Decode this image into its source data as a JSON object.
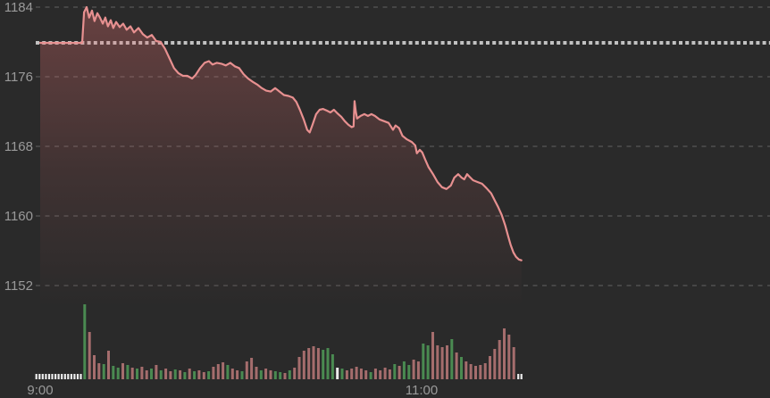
{
  "app": {
    "background_color": "#2a2a2a",
    "axis_text_color": "#9a9a9a"
  },
  "chart_data": {
    "type": "line",
    "description": "Intraday stock-index price chart with area fill and volume bars",
    "x_axis": {
      "tick_labels": [
        "9:00",
        "11:00"
      ],
      "tick_minutes": [
        0,
        120
      ],
      "session_start_label": "9:00",
      "data_end_minute": 151.4
    },
    "y_axis": {
      "side": "left",
      "tick_values": [
        1184,
        1176,
        1168,
        1160,
        1152
      ],
      "range": [
        1149.4,
        1184.8
      ]
    },
    "grid": true,
    "legend": false,
    "previous_close_reference": 1179.9,
    "open_value": 1179.9,
    "session_high": 1184.0,
    "session_low": 1154.9,
    "last_price": 1154.9,
    "colors": {
      "price_line": "#e79090",
      "area_fill": "#e06e6e",
      "grid_line": "#4a4a4a",
      "reference_line": "#d6d6d6",
      "volume_up": "#4a8a51",
      "volume_down": "#a56d6d",
      "volume_neutral": "#ececec",
      "axis_text": "#9a9a9a"
    },
    "price_series": {
      "name": "index-price",
      "unit": "points",
      "points": [
        [
          0,
          1179.9
        ],
        [
          13.2,
          1179.9
        ],
        [
          13.8,
          1183.4
        ],
        [
          14.6,
          1184
        ],
        [
          15.4,
          1182.8
        ],
        [
          16.3,
          1183.6
        ],
        [
          17.1,
          1182.4
        ],
        [
          18,
          1183.3
        ],
        [
          18.8,
          1182.8
        ],
        [
          19.7,
          1182.1
        ],
        [
          20.5,
          1182.8
        ],
        [
          21.3,
          1181.8
        ],
        [
          22.2,
          1182.5
        ],
        [
          23,
          1181.6
        ],
        [
          23.9,
          1182.3
        ],
        [
          25,
          1181.7
        ],
        [
          26.1,
          1182.1
        ],
        [
          27.2,
          1181.4
        ],
        [
          28.4,
          1181.8
        ],
        [
          29.5,
          1181.1
        ],
        [
          30.9,
          1181.6
        ],
        [
          32.3,
          1180.9
        ],
        [
          33.7,
          1180.5
        ],
        [
          35.1,
          1180.8
        ],
        [
          36.5,
          1180.1
        ],
        [
          37.9,
          1180
        ],
        [
          39.3,
          1179.2
        ],
        [
          40.7,
          1178.1
        ],
        [
          42.1,
          1177
        ],
        [
          43.5,
          1176.4
        ],
        [
          44.9,
          1176.1
        ],
        [
          46.3,
          1176.1
        ],
        [
          47.8,
          1175.8
        ],
        [
          48.9,
          1176.2
        ],
        [
          50.3,
          1177
        ],
        [
          51.7,
          1177.6
        ],
        [
          53.1,
          1177.8
        ],
        [
          54.2,
          1177.4
        ],
        [
          55.6,
          1177.6
        ],
        [
          57,
          1177.5
        ],
        [
          58.4,
          1177.3
        ],
        [
          59.8,
          1177.6
        ],
        [
          61.2,
          1177.2
        ],
        [
          62.6,
          1177
        ],
        [
          64,
          1176.3
        ],
        [
          65.4,
          1175.8
        ],
        [
          66.9,
          1175.4
        ],
        [
          68.3,
          1175.1
        ],
        [
          69.7,
          1174.7
        ],
        [
          71.1,
          1174.4
        ],
        [
          72.5,
          1174.3
        ],
        [
          73.9,
          1174.7
        ],
        [
          75.3,
          1174.3
        ],
        [
          76.7,
          1173.9
        ],
        [
          78.1,
          1173.8
        ],
        [
          79.5,
          1173.6
        ],
        [
          80.6,
          1173.1
        ],
        [
          81.7,
          1172.2
        ],
        [
          82.9,
          1171.1
        ],
        [
          84,
          1169.9
        ],
        [
          84.8,
          1169.6
        ],
        [
          85.7,
          1170.5
        ],
        [
          86.8,
          1171.7
        ],
        [
          87.9,
          1172.2
        ],
        [
          89,
          1172.3
        ],
        [
          90.2,
          1172.1
        ],
        [
          91.3,
          1171.9
        ],
        [
          92.4,
          1172.2
        ],
        [
          93.5,
          1171.8
        ],
        [
          94.7,
          1171.4
        ],
        [
          95.8,
          1170.9
        ],
        [
          96.9,
          1170.5
        ],
        [
          98,
          1170.2
        ],
        [
          98.6,
          1170.3
        ],
        [
          98.9,
          1173.2
        ],
        [
          99.3,
          1172
        ],
        [
          99.7,
          1171.2
        ],
        [
          100.8,
          1171.5
        ],
        [
          102,
          1171.7
        ],
        [
          103.1,
          1171.5
        ],
        [
          104.2,
          1171.7
        ],
        [
          105.3,
          1171.5
        ],
        [
          106.7,
          1171.1
        ],
        [
          108.1,
          1170.9
        ],
        [
          109.6,
          1170.7
        ],
        [
          111,
          1169.9
        ],
        [
          111.8,
          1170.4
        ],
        [
          112.9,
          1170.1
        ],
        [
          114,
          1169.2
        ],
        [
          115.4,
          1168.8
        ],
        [
          116.9,
          1168.5
        ],
        [
          118,
          1168.1
        ],
        [
          118.5,
          1167.2
        ],
        [
          119.4,
          1167.6
        ],
        [
          120.2,
          1167.3
        ],
        [
          121.1,
          1166.5
        ],
        [
          122.2,
          1165.6
        ],
        [
          123.6,
          1164.8
        ],
        [
          125,
          1163.9
        ],
        [
          126.4,
          1163.3
        ],
        [
          127.8,
          1163.1
        ],
        [
          129.2,
          1163.5
        ],
        [
          130.3,
          1164.4
        ],
        [
          131.5,
          1164.8
        ],
        [
          132.6,
          1164.4
        ],
        [
          133.4,
          1164.2
        ],
        [
          134.3,
          1164.8
        ],
        [
          135.1,
          1164.5
        ],
        [
          136.2,
          1164.1
        ],
        [
          137.6,
          1163.9
        ],
        [
          139,
          1163.7
        ],
        [
          140.4,
          1163.2
        ],
        [
          141.9,
          1162.6
        ],
        [
          143,
          1161.8
        ],
        [
          144.1,
          1161
        ],
        [
          145.2,
          1160.1
        ],
        [
          146.3,
          1158.9
        ],
        [
          147.2,
          1157.7
        ],
        [
          148,
          1156.7
        ],
        [
          148.9,
          1155.8
        ],
        [
          149.7,
          1155.3
        ],
        [
          150.6,
          1155
        ],
        [
          151.4,
          1154.9
        ]
      ]
    },
    "volume_series": {
      "name": "volume",
      "unit": "relative",
      "bars": [
        [
          14,
          84,
          "u"
        ],
        [
          15.5,
          53,
          "d"
        ],
        [
          17,
          27,
          "d"
        ],
        [
          18.5,
          18,
          "d"
        ],
        [
          20,
          17,
          "u"
        ],
        [
          21.5,
          32,
          "d"
        ],
        [
          23,
          15,
          "u"
        ],
        [
          24.5,
          13,
          "u"
        ],
        [
          26,
          18,
          "d"
        ],
        [
          27.5,
          16,
          "u"
        ],
        [
          29,
          13,
          "d"
        ],
        [
          30.5,
          12,
          "u"
        ],
        [
          32,
          14,
          "d"
        ],
        [
          33.5,
          10,
          "d"
        ],
        [
          35,
          12,
          "u"
        ],
        [
          36.5,
          16,
          "d"
        ],
        [
          38,
          10,
          "u"
        ],
        [
          39.5,
          12,
          "d"
        ],
        [
          41,
          9,
          "d"
        ],
        [
          42.5,
          11,
          "u"
        ],
        [
          44,
          10,
          "d"
        ],
        [
          45.5,
          8,
          "u"
        ],
        [
          47,
          12,
          "d"
        ],
        [
          48.5,
          9,
          "u"
        ],
        [
          50,
          10,
          "d"
        ],
        [
          51.5,
          8,
          "d"
        ],
        [
          53,
          9,
          "u"
        ],
        [
          54.5,
          14,
          "d"
        ],
        [
          56,
          17,
          "d"
        ],
        [
          57.5,
          19,
          "d"
        ],
        [
          59,
          16,
          "u"
        ],
        [
          60.5,
          12,
          "d"
        ],
        [
          62,
          10,
          "d"
        ],
        [
          63.5,
          9,
          "u"
        ],
        [
          65,
          20,
          "d"
        ],
        [
          66.5,
          24,
          "d"
        ],
        [
          68,
          14,
          "d"
        ],
        [
          69.5,
          10,
          "u"
        ],
        [
          71,
          12,
          "d"
        ],
        [
          72.5,
          10,
          "d"
        ],
        [
          74,
          9,
          "u"
        ],
        [
          75.5,
          8,
          "u"
        ],
        [
          77,
          7,
          "d"
        ],
        [
          78.5,
          10,
          "u"
        ],
        [
          80,
          13,
          "d"
        ],
        [
          81.5,
          25,
          "d"
        ],
        [
          83,
          32,
          "d"
        ],
        [
          84.5,
          35,
          "d"
        ],
        [
          86,
          37,
          "d"
        ],
        [
          87.5,
          35,
          "d"
        ],
        [
          89,
          33,
          "u"
        ],
        [
          90.5,
          35,
          "u"
        ],
        [
          92,
          28,
          "u"
        ],
        [
          93.5,
          13,
          "n"
        ],
        [
          95,
          12,
          "u"
        ],
        [
          96.5,
          10,
          "d"
        ],
        [
          98,
          12,
          "d"
        ],
        [
          99.5,
          14,
          "d"
        ],
        [
          101,
          12,
          "d"
        ],
        [
          102.5,
          10,
          "d"
        ],
        [
          104,
          8,
          "u"
        ],
        [
          105.5,
          12,
          "d"
        ],
        [
          107,
          10,
          "d"
        ],
        [
          108.5,
          13,
          "d"
        ],
        [
          110,
          11,
          "d"
        ],
        [
          111.5,
          17,
          "u"
        ],
        [
          113,
          15,
          "d"
        ],
        [
          114.5,
          20,
          "u"
        ],
        [
          116,
          16,
          "u"
        ],
        [
          117.5,
          22,
          "d"
        ],
        [
          119,
          20,
          "d"
        ],
        [
          120.5,
          40,
          "u"
        ],
        [
          122,
          38,
          "u"
        ],
        [
          123.5,
          53,
          "d"
        ],
        [
          125,
          38,
          "d"
        ],
        [
          126.5,
          36,
          "d"
        ],
        [
          128,
          38,
          "d"
        ],
        [
          129.5,
          45,
          "u"
        ],
        [
          131,
          30,
          "d"
        ],
        [
          132.5,
          25,
          "u"
        ],
        [
          134,
          20,
          "d"
        ],
        [
          135.5,
          17,
          "d"
        ],
        [
          137,
          15,
          "d"
        ],
        [
          138.5,
          16,
          "d"
        ],
        [
          140,
          18,
          "d"
        ],
        [
          141.5,
          26,
          "d"
        ],
        [
          143,
          34,
          "d"
        ],
        [
          144.5,
          44,
          "d"
        ],
        [
          146,
          57,
          "d"
        ],
        [
          147.5,
          50,
          "d"
        ],
        [
          149,
          36,
          "d"
        ]
      ]
    },
    "session_tick_marks": {
      "description": "small white baseline marks before first trade and after last trade",
      "minutes": [
        -1.2,
        -0.2,
        0.8,
        1.8,
        2.8,
        3.8,
        4.8,
        5.8,
        6.8,
        7.8,
        8.8,
        9.8,
        10.8,
        11.8,
        12.8,
        150.4,
        151.4
      ],
      "height": 6
    }
  }
}
